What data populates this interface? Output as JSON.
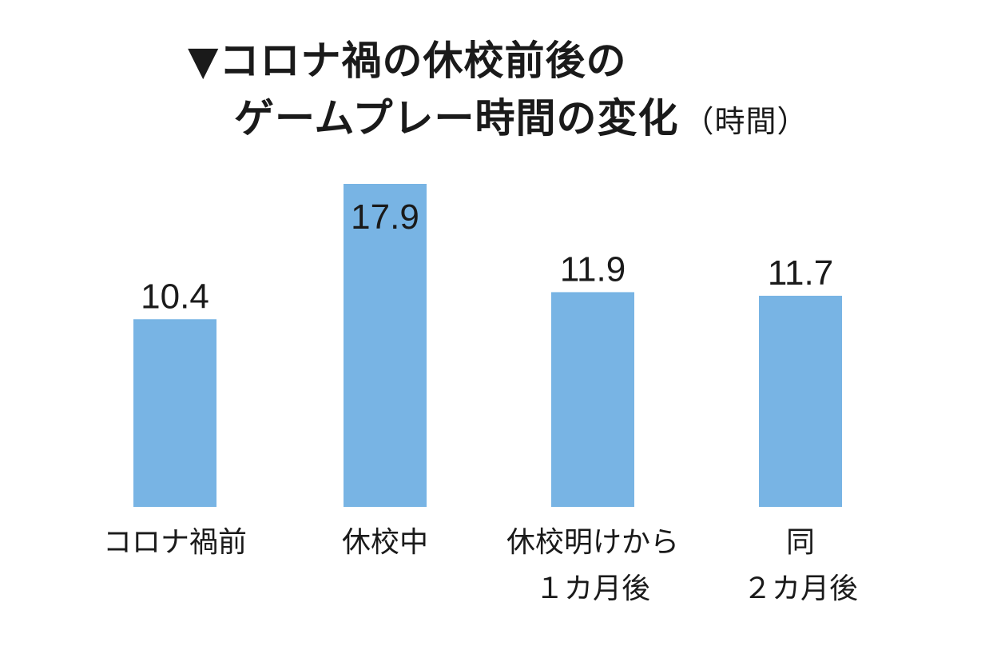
{
  "chart_data": {
    "type": "bar",
    "title_lines": [
      "▼コロナ禍の休校前後の",
      "ゲームプレー時間の変化"
    ],
    "unit_label": "（時間）",
    "categories": [
      [
        "コロナ禍前"
      ],
      [
        "休校中"
      ],
      [
        "休校明けから",
        "１カ月後"
      ],
      [
        "同",
        "２カ月後"
      ]
    ],
    "values": [
      10.4,
      17.9,
      11.9,
      11.7
    ],
    "value_labels": [
      "10.4",
      "17.9",
      "11.9",
      "11.7"
    ],
    "ylim": [
      0,
      17.9
    ],
    "grid": false,
    "bar_color": "#78b4e4"
  }
}
